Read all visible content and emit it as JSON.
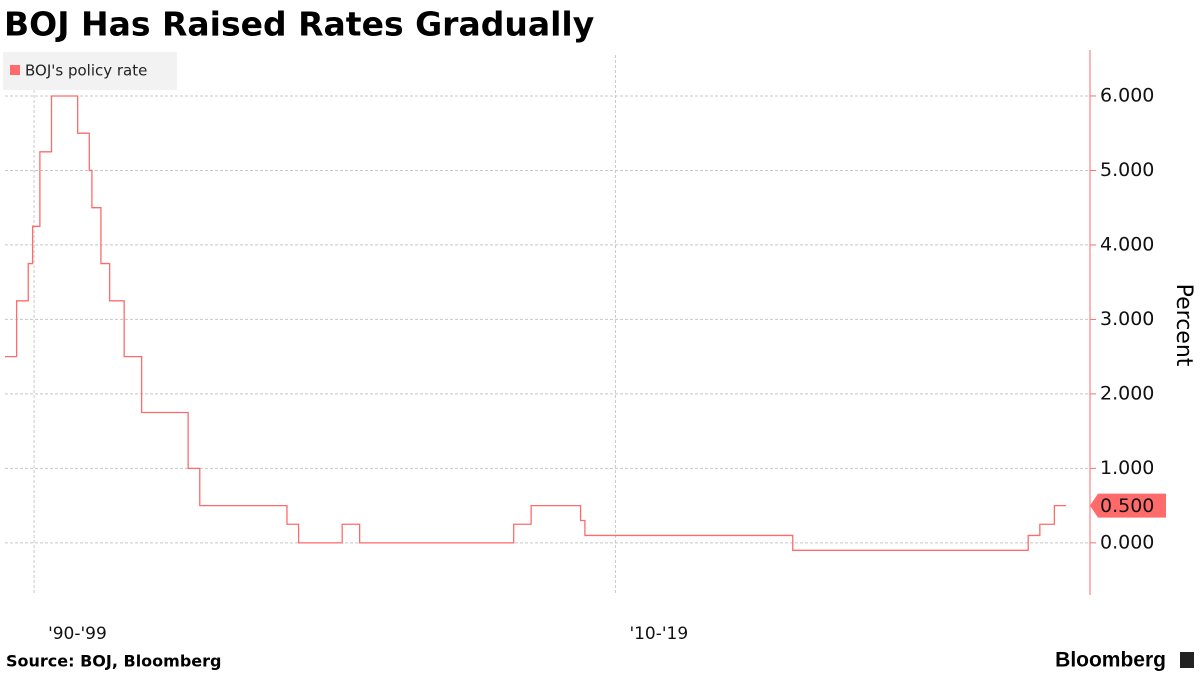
{
  "chart_data": {
    "type": "line",
    "title": "BOJ Has Raised Rates Gradually",
    "y_label": "Percent",
    "source": "Source: BOJ, Bloomberg",
    "brand": "Bloomberg",
    "x": [
      1989.0,
      1989.4,
      1989.8,
      1989.95,
      1990.2,
      1990.6,
      1991.5,
      1991.9,
      1991.99,
      1992.3,
      1992.6,
      1993.1,
      1993.7,
      1995.3,
      1995.7,
      1998.7,
      1999.1,
      2000.6,
      2001.2,
      2006.5,
      2007.1,
      2008.8,
      2008.95,
      2016.1,
      2024.2,
      2024.6,
      2025.1,
      2025.5
    ],
    "series": [
      {
        "name": "BOJ's policy rate",
        "color": "#ff6b6b",
        "step": true,
        "values": [
          2.5,
          3.25,
          3.75,
          4.25,
          5.25,
          6.0,
          5.5,
          5.0,
          4.5,
          3.75,
          3.25,
          2.5,
          1.75,
          1.0,
          0.5,
          0.25,
          0,
          0.25,
          0,
          0.25,
          0.5,
          0.3,
          0.1,
          -0.1,
          0.1,
          0.25,
          0.5,
          0.5
        ],
        "last_label": "0.500"
      }
    ],
    "xlim": [
      1989.0,
      2025.5
    ],
    "xticks": [
      {
        "value": 1990,
        "label": "'90-'99"
      },
      {
        "value": 2010,
        "label": "'10-'19"
      }
    ],
    "ylim": [
      -0.7,
      6.55
    ],
    "yticks": [
      {
        "value": 0,
        "label": "0.000"
      },
      {
        "value": 1,
        "label": "1.000"
      },
      {
        "value": 2,
        "label": "2.000"
      },
      {
        "value": 3,
        "label": "3.000"
      },
      {
        "value": 4,
        "label": "4.000"
      },
      {
        "value": 5,
        "label": "5.000"
      },
      {
        "value": 6,
        "label": "6.000"
      }
    ],
    "grid": true,
    "legend": "top-left"
  }
}
